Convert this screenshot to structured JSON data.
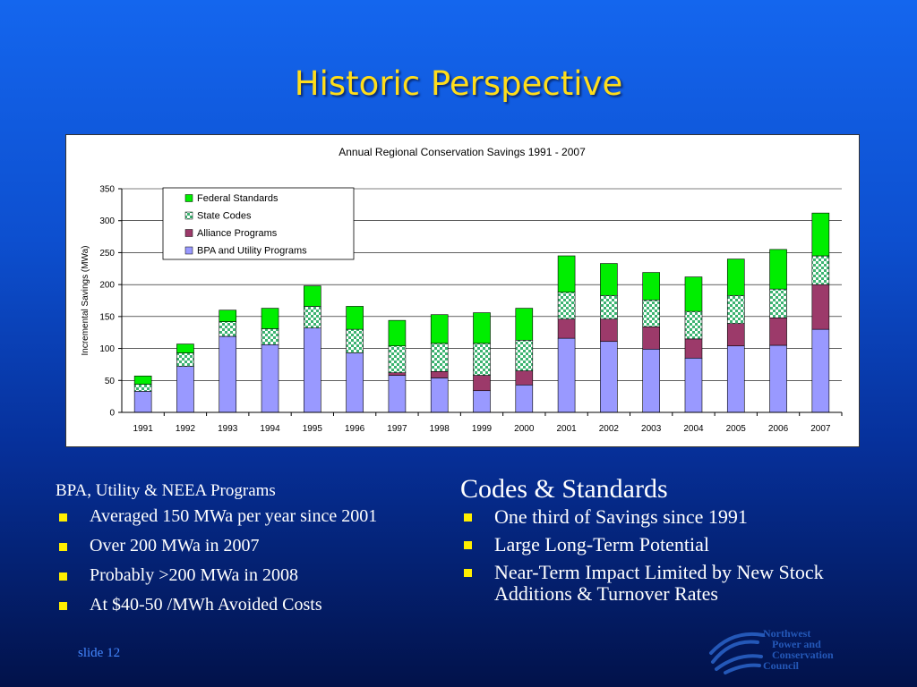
{
  "slide": {
    "title": "Historic Perspective",
    "slide_number": "slide 12"
  },
  "left_panel": {
    "heading": "BPA, Utility & NEEA Programs",
    "bullets": [
      "Averaged 150 MWa per year since 2001",
      "Over 200 MWa in 2007",
      "Probably >200 MWa in 2008",
      "At $40-50 /MWh Avoided Costs"
    ]
  },
  "right_panel": {
    "heading": "Codes & Standards",
    "bullets": [
      "One third of Savings since 1991",
      "Large Long-Term Potential",
      "Near-Term Impact Limited by New Stock Additions & Turnover Rates"
    ]
  },
  "logo": {
    "lines": [
      "Northwest",
      "Power and",
      "Conservation",
      "Council"
    ],
    "icon": "swirl-logo-icon"
  },
  "colors": {
    "federal_standards": "#00ee00",
    "state_codes_a": "#3cb371",
    "state_codes_b": "#ffffff",
    "alliance_programs": "#9c3a6a",
    "bpa_utility": "#9999ff",
    "title": "#ffdd1a",
    "bullet": "#ffee00"
  },
  "chart_data": {
    "type": "bar",
    "stacked": true,
    "title": "Annual Regional Conservation Savings 1991 - 2007",
    "xlabel": "",
    "ylabel": "Incremental Savings (MWa)",
    "ylim": [
      0,
      350
    ],
    "yticks": [
      0,
      50,
      100,
      150,
      200,
      250,
      300,
      350
    ],
    "grid": true,
    "legend_position": "top-left",
    "categories": [
      "1991",
      "1992",
      "1993",
      "1994",
      "1995",
      "1996",
      "1997",
      "1998",
      "1999",
      "2000",
      "2001",
      "2002",
      "2003",
      "2004",
      "2005",
      "2006",
      "2007"
    ],
    "series": [
      {
        "name": "BPA and Utility Programs",
        "values": [
          33,
          72,
          119,
          106,
          132,
          93,
          58,
          54,
          34,
          43,
          116,
          111,
          99,
          85,
          104,
          105,
          130
        ]
      },
      {
        "name": "Alliance Programs",
        "values": [
          0,
          0,
          0,
          0,
          0,
          0,
          4,
          10,
          24,
          22,
          30,
          35,
          35,
          30,
          35,
          43,
          70
        ]
      },
      {
        "name": "State Codes",
        "values": [
          11,
          21,
          23,
          25,
          34,
          37,
          42,
          44,
          50,
          48,
          42,
          37,
          42,
          43,
          44,
          45,
          45
        ]
      },
      {
        "name": "Federal Standards",
        "values": [
          13,
          14,
          18,
          32,
          32,
          36,
          40,
          45,
          48,
          50,
          57,
          50,
          43,
          54,
          57,
          62,
          67
        ]
      }
    ],
    "legend_order": [
      "Federal Standards",
      "State Codes",
      "Alliance Programs",
      "BPA and Utility Programs"
    ]
  }
}
